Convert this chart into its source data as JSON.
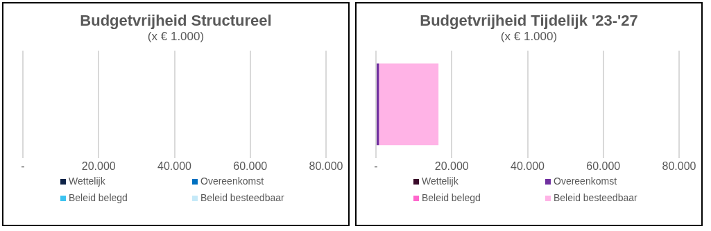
{
  "chart_data": [
    {
      "type": "bar",
      "orientation": "horizontal",
      "stacked": true,
      "title": "Budgetvrijheid Structureel",
      "subtitle": "(x € 1.000)",
      "categories": [
        null
      ],
      "series": [
        {
          "name": "Wettelijk",
          "color": "#0f2448",
          "values": [
            0
          ]
        },
        {
          "name": "Overeenkomst",
          "color": "#0070c0",
          "values": [
            0
          ]
        },
        {
          "name": "Beleid belegd",
          "color": "#3cc3f0",
          "values": [
            0
          ]
        },
        {
          "name": "Beleid besteedbaar",
          "color": "#c5e9f8",
          "values": [
            0
          ]
        }
      ],
      "xlim": [
        0,
        80000
      ],
      "xticks": [
        {
          "value": 0,
          "label": "-"
        },
        {
          "value": 20000,
          "label": "20.000"
        },
        {
          "value": 40000,
          "label": "40.000"
        },
        {
          "value": 60000,
          "label": "60.000"
        },
        {
          "value": 80000,
          "label": "80.000"
        }
      ],
      "grid": "x",
      "legend": "bottom",
      "tick_labels": "x"
    },
    {
      "type": "bar",
      "orientation": "horizontal",
      "stacked": true,
      "title": "Budgetvrijheid Tijdelijk '23-'27",
      "subtitle": "(x € 1.000)",
      "categories": [
        null
      ],
      "series": [
        {
          "name": "Wettelijk",
          "color": "#3a0a2a",
          "values": [
            0
          ]
        },
        {
          "name": "Overeenkomst",
          "color": "#7030a0",
          "values": [
            800
          ]
        },
        {
          "name": "Beleid belegd",
          "color": "#ff66cc",
          "values": [
            0
          ]
        },
        {
          "name": "Beleid besteedbaar",
          "color": "#ffb3e6",
          "values": [
            15700
          ]
        }
      ],
      "xlim": [
        0,
        80000
      ],
      "xticks": [
        {
          "value": 0,
          "label": "-"
        },
        {
          "value": 20000,
          "label": "20.000"
        },
        {
          "value": 40000,
          "label": "40.000"
        },
        {
          "value": 60000,
          "label": "60.000"
        },
        {
          "value": 80000,
          "label": "80.000"
        }
      ],
      "grid": "x",
      "legend": "bottom",
      "tick_labels": "x"
    }
  ]
}
